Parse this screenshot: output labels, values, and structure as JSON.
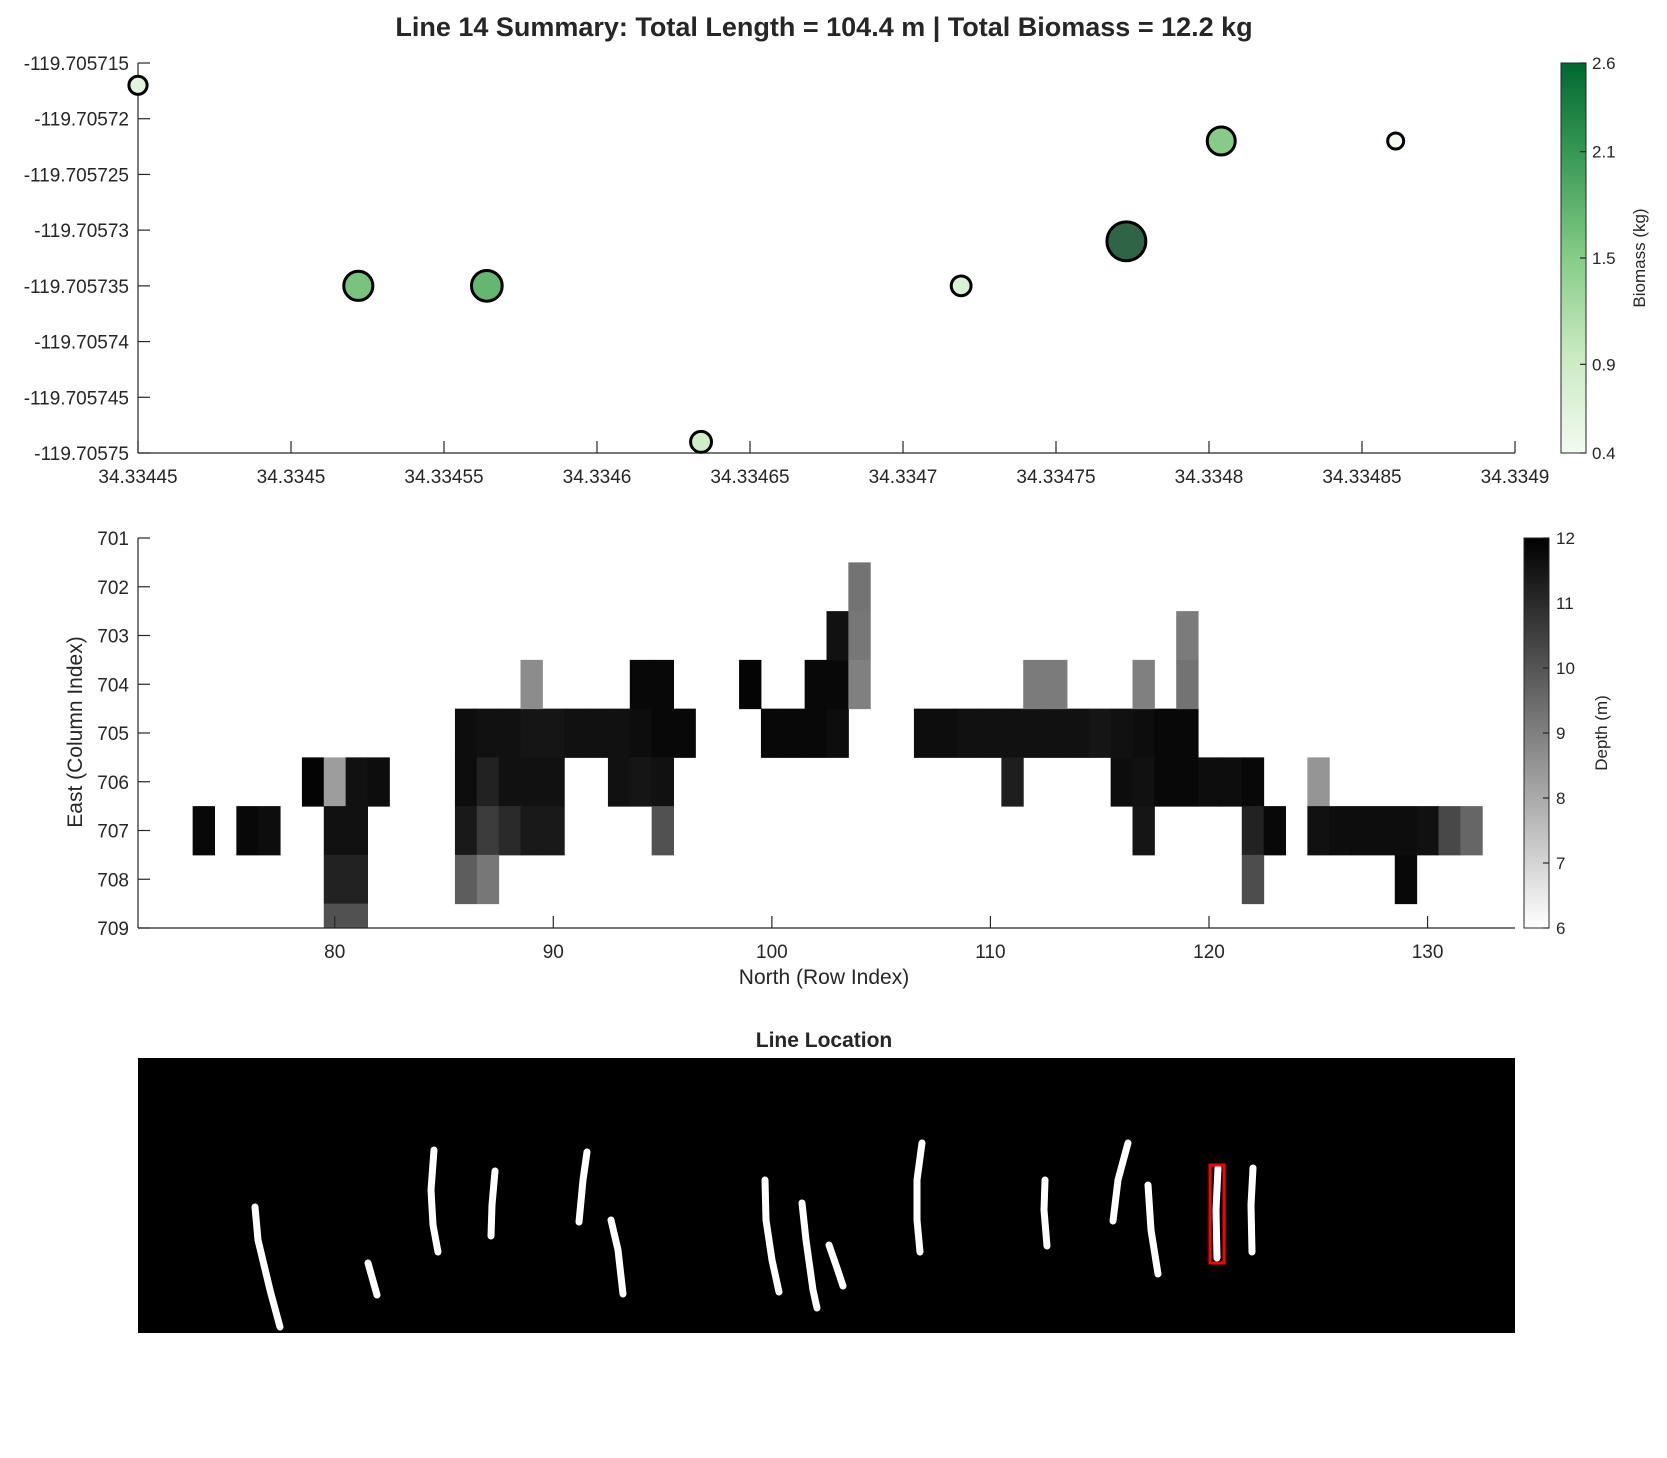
{
  "figure_title": "Line 14 Summary: Total Length = 104.4 m | Total Biomass = 12.2 kg",
  "chart_data": [
    {
      "type": "scatter",
      "title": "",
      "xlabel": "",
      "ylabel": "",
      "xlim": [
        34.33445,
        34.3349
      ],
      "ylim": [
        -119.70575,
        -119.705715
      ],
      "x_ticks": [
        34.33445,
        34.3345,
        34.33455,
        34.3346,
        34.33465,
        34.3347,
        34.33475,
        34.3348,
        34.33485,
        34.3349
      ],
      "x_tick_labels": [
        "34.33445",
        "34.3345",
        "34.33455",
        "34.3346",
        "34.33465",
        "34.3347",
        "34.33475",
        "34.3348",
        "34.33485",
        "34.3349"
      ],
      "y_ticks": [
        -119.705715,
        -119.70572,
        -119.705725,
        -119.70573,
        -119.705735,
        -119.70574,
        -119.705745,
        -119.70575
      ],
      "y_tick_labels": [
        "-119.705715",
        "-119.70572",
        "-119.705725",
        "-119.70573",
        "-119.705735",
        "-119.70574",
        "-119.705745",
        "-119.70575"
      ],
      "colorbar": {
        "label": "Biomass (kg)",
        "lim": [
          0.4,
          2.6
        ],
        "ticks": [
          0.4,
          0.9,
          1.5,
          2.1,
          2.6
        ],
        "tick_labels": [
          "0.4",
          "0.9",
          "1.5",
          "2.1",
          "2.6"
        ],
        "colormap": "white-to-dark-green",
        "color_low": "#f2faf0",
        "color_high": "#00682f"
      },
      "points": [
        {
          "x": 34.33445,
          "y": -119.705717,
          "biomass": 0.6
        },
        {
          "x": 34.334522,
          "y": -119.705735,
          "biomass": 1.6
        },
        {
          "x": 34.334564,
          "y": -119.705735,
          "biomass": 1.75
        },
        {
          "x": 34.334634,
          "y": -119.705749,
          "biomass": 0.85
        },
        {
          "x": 34.334719,
          "y": -119.705735,
          "biomass": 0.75
        },
        {
          "x": 34.334773,
          "y": -119.705731,
          "biomass": 2.5
        },
        {
          "x": 34.334804,
          "y": -119.705722,
          "biomass": 1.5
        },
        {
          "x": 34.334861,
          "y": -119.705722,
          "biomass": 0.4
        }
      ]
    },
    {
      "type": "heatmap",
      "title": "",
      "xlabel": "North (Row Index)",
      "ylabel": "East (Column Index)",
      "xlim": [
        71,
        134
      ],
      "ylim": [
        701,
        709
      ],
      "x_ticks": [
        80,
        90,
        100,
        110,
        120,
        130
      ],
      "x_tick_labels": [
        "80",
        "90",
        "100",
        "110",
        "120",
        "130"
      ],
      "y_ticks": [
        701,
        702,
        703,
        704,
        705,
        706,
        707,
        708,
        709
      ],
      "y_tick_labels": [
        "701",
        "702",
        "703",
        "704",
        "705",
        "706",
        "707",
        "708",
        "709"
      ],
      "colorbar": {
        "label": "Depth (m)",
        "lim": [
          6,
          12
        ],
        "ticks": [
          6,
          7,
          8,
          9,
          10,
          11,
          12
        ],
        "tick_labels": [
          "6",
          "7",
          "8",
          "9",
          "10",
          "11",
          "12"
        ],
        "colormap": "white-to-black"
      },
      "cells": [
        {
          "row": 74,
          "col": 707,
          "depth": 11.8
        },
        {
          "row": 76,
          "col": 707,
          "depth": 11.8
        },
        {
          "row": 77,
          "col": 707,
          "depth": 11.7
        },
        {
          "row": 79,
          "col": 706,
          "depth": 11.9
        },
        {
          "row": 80,
          "col": 706,
          "depth": 8.3
        },
        {
          "row": 81,
          "col": 706,
          "depth": 11.6
        },
        {
          "row": 82,
          "col": 706,
          "depth": 11.7
        },
        {
          "row": 80,
          "col": 707,
          "depth": 11.6
        },
        {
          "row": 81,
          "col": 707,
          "depth": 11.6
        },
        {
          "row": 80,
          "col": 708,
          "depth": 11.2
        },
        {
          "row": 81,
          "col": 708,
          "depth": 11.2
        },
        {
          "row": 80,
          "col": 709,
          "depth": 10.1
        },
        {
          "row": 81,
          "col": 709,
          "depth": 10.1
        },
        {
          "row": 86,
          "col": 705,
          "depth": 11.7
        },
        {
          "row": 87,
          "col": 705,
          "depth": 11.6
        },
        {
          "row": 88,
          "col": 705,
          "depth": 11.6
        },
        {
          "row": 89,
          "col": 705,
          "depth": 11.5
        },
        {
          "row": 90,
          "col": 705,
          "depth": 11.5
        },
        {
          "row": 91,
          "col": 705,
          "depth": 11.6
        },
        {
          "row": 92,
          "col": 705,
          "depth": 11.6
        },
        {
          "row": 93,
          "col": 705,
          "depth": 11.6
        },
        {
          "row": 94,
          "col": 705,
          "depth": 11.7
        },
        {
          "row": 95,
          "col": 705,
          "depth": 11.8
        },
        {
          "row": 96,
          "col": 705,
          "depth": 11.8
        },
        {
          "row": 89,
          "col": 704,
          "depth": 8.7
        },
        {
          "row": 94,
          "col": 704,
          "depth": 11.8
        },
        {
          "row": 95,
          "col": 704,
          "depth": 11.8
        },
        {
          "row": 86,
          "col": 706,
          "depth": 11.7
        },
        {
          "row": 87,
          "col": 706,
          "depth": 11.2
        },
        {
          "row": 88,
          "col": 706,
          "depth": 11.6
        },
        {
          "row": 89,
          "col": 706,
          "depth": 11.6
        },
        {
          "row": 90,
          "col": 706,
          "depth": 11.6
        },
        {
          "row": 93,
          "col": 706,
          "depth": 11.6
        },
        {
          "row": 94,
          "col": 706,
          "depth": 11.5
        },
        {
          "row": 95,
          "col": 706,
          "depth": 11.6
        },
        {
          "row": 86,
          "col": 707,
          "depth": 11.4
        },
        {
          "row": 87,
          "col": 707,
          "depth": 10.6
        },
        {
          "row": 88,
          "col": 707,
          "depth": 11.0
        },
        {
          "row": 89,
          "col": 707,
          "depth": 11.4
        },
        {
          "row": 90,
          "col": 707,
          "depth": 11.4
        },
        {
          "row": 95,
          "col": 707,
          "depth": 10.1
        },
        {
          "row": 86,
          "col": 708,
          "depth": 9.8
        },
        {
          "row": 87,
          "col": 708,
          "depth": 9.2
        },
        {
          "row": 99,
          "col": 704,
          "depth": 11.9
        },
        {
          "row": 100,
          "col": 705,
          "depth": 11.8
        },
        {
          "row": 101,
          "col": 705,
          "depth": 11.8
        },
        {
          "row": 102,
          "col": 705,
          "depth": 11.8
        },
        {
          "row": 103,
          "col": 705,
          "depth": 11.7
        },
        {
          "row": 102,
          "col": 704,
          "depth": 11.8
        },
        {
          "row": 103,
          "col": 704,
          "depth": 11.8
        },
        {
          "row": 103,
          "col": 703,
          "depth": 11.6
        },
        {
          "row": 104,
          "col": 702,
          "depth": 9.3
        },
        {
          "row": 104,
          "col": 703,
          "depth": 9.2
        },
        {
          "row": 104,
          "col": 704,
          "depth": 9.0
        },
        {
          "row": 107,
          "col": 705,
          "depth": 11.7
        },
        {
          "row": 108,
          "col": 705,
          "depth": 11.7
        },
        {
          "row": 109,
          "col": 705,
          "depth": 11.6
        },
        {
          "row": 110,
          "col": 705,
          "depth": 11.6
        },
        {
          "row": 111,
          "col": 705,
          "depth": 11.6
        },
        {
          "row": 112,
          "col": 705,
          "depth": 11.6
        },
        {
          "row": 113,
          "col": 705,
          "depth": 11.6
        },
        {
          "row": 114,
          "col": 705,
          "depth": 11.6
        },
        {
          "row": 115,
          "col": 705,
          "depth": 11.5
        },
        {
          "row": 116,
          "col": 705,
          "depth": 11.6
        },
        {
          "row": 117,
          "col": 705,
          "depth": 11.7
        },
        {
          "row": 118,
          "col": 705,
          "depth": 11.8
        },
        {
          "row": 119,
          "col": 705,
          "depth": 11.8
        },
        {
          "row": 112,
          "col": 704,
          "depth": 9.1
        },
        {
          "row": 113,
          "col": 704,
          "depth": 9.1
        },
        {
          "row": 117,
          "col": 704,
          "depth": 9.0
        },
        {
          "row": 119,
          "col": 703,
          "depth": 9.1
        },
        {
          "row": 119,
          "col": 704,
          "depth": 9.3
        },
        {
          "row": 111,
          "col": 706,
          "depth": 11.3
        },
        {
          "row": 116,
          "col": 706,
          "depth": 11.7
        },
        {
          "row": 117,
          "col": 706,
          "depth": 11.6
        },
        {
          "row": 118,
          "col": 706,
          "depth": 11.8
        },
        {
          "row": 119,
          "col": 706,
          "depth": 11.8
        },
        {
          "row": 120,
          "col": 706,
          "depth": 11.7
        },
        {
          "row": 121,
          "col": 706,
          "depth": 11.7
        },
        {
          "row": 122,
          "col": 706,
          "depth": 11.8
        },
        {
          "row": 117,
          "col": 707,
          "depth": 11.5
        },
        {
          "row": 122,
          "col": 707,
          "depth": 11.2
        },
        {
          "row": 123,
          "col": 707,
          "depth": 11.8
        },
        {
          "row": 122,
          "col": 708,
          "depth": 10.2
        },
        {
          "row": 125,
          "col": 706,
          "depth": 8.5
        },
        {
          "row": 125,
          "col": 707,
          "depth": 11.6
        },
        {
          "row": 126,
          "col": 707,
          "depth": 11.7
        },
        {
          "row": 127,
          "col": 707,
          "depth": 11.7
        },
        {
          "row": 128,
          "col": 707,
          "depth": 11.7
        },
        {
          "row": 129,
          "col": 707,
          "depth": 11.7
        },
        {
          "row": 130,
          "col": 707,
          "depth": 11.6
        },
        {
          "row": 131,
          "col": 707,
          "depth": 10.3
        },
        {
          "row": 132,
          "col": 707,
          "depth": 9.6
        },
        {
          "row": 129,
          "col": 708,
          "depth": 11.8
        }
      ]
    }
  ],
  "location_panel": {
    "title": "Line Location",
    "background": "#000000",
    "line_color": "#ffffff",
    "highlight_color": "#ff0000"
  }
}
